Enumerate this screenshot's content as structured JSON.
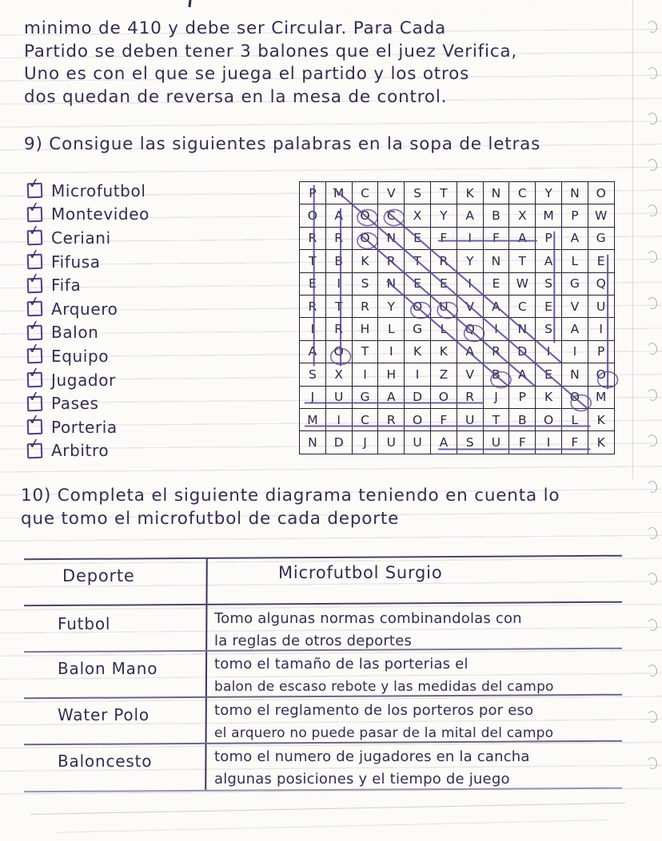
{
  "intro_lines": [
    "minimo de 410 y debe ser Circular. Para Cada",
    "Partido se deben tener 3 balones que el juez Verifica,",
    "Uno es con el que se juega el partido y los otros",
    "dos quedan de reversa en la mesa de control."
  ],
  "q9_text": "9) Consigue las siguientes palabras en la sopa de letras",
  "q10_lines": [
    "10) Completa el siguiente diagrama teniendo en cuenta lo",
    "que tomo el microfutbol de cada deporte"
  ],
  "word_list": [
    "Microfutbol",
    "Montevideo",
    "Ceriani",
    "Fifusa",
    "Fifa",
    "Arquero",
    "Balon",
    "Equipo",
    "Jugador",
    "Pases",
    "Porteria",
    "Arbitro"
  ],
  "word_search": {
    "rows": [
      "PMCVSTKNCYNO",
      "OAOCXYABXMPW",
      "RRONEFIFAPAG",
      "TBKRTRYNTALE",
      "EISNEEIEWSGQ",
      "RTRYOUVACEVU",
      "IRHLGLQINSAI",
      "AOTIKKARDIIP",
      "SXIHIZVBAENO",
      "JUGADORJPKOM",
      "MICROFUTBOLK",
      "NDJUUASUFIFK"
    ],
    "strikes": [
      {
        "word": "PORTERIA",
        "from": [
          1,
          1
        ],
        "to": [
          8,
          1
        ]
      },
      {
        "word": "ARBITRO",
        "from": [
          2,
          2
        ],
        "to": [
          8,
          2
        ]
      },
      {
        "word": "PASES",
        "from": [
          3,
          10
        ],
        "to": [
          7,
          10
        ]
      },
      {
        "word": "EQUIPO",
        "from": [
          4,
          12
        ],
        "to": [
          9,
          12
        ]
      },
      {
        "word": "FIFA",
        "from": [
          3,
          6
        ],
        "to": [
          3,
          9
        ]
      },
      {
        "word": "JUGADOR",
        "from": [
          10,
          1
        ],
        "to": [
          10,
          7
        ]
      },
      {
        "word": "MICROFUTBOL",
        "from": [
          11,
          1
        ],
        "to": [
          11,
          11
        ]
      },
      {
        "word": "FIFUSA",
        "from": [
          12,
          6
        ],
        "to": [
          12,
          11
        ]
      },
      {
        "word": "MONTEVIDEO",
        "from": [
          1,
          2
        ],
        "to": [
          10,
          11
        ]
      },
      {
        "word": "CERIANI",
        "from": [
          2,
          4
        ],
        "to": [
          8,
          10
        ]
      },
      {
        "word": "ARQUERO",
        "from": [
          3,
          3
        ],
        "to": [
          9,
          9
        ]
      },
      {
        "word": "BALON",
        "from": [
          5,
          4
        ],
        "to": [
          9,
          8
        ]
      }
    ],
    "circles": [
      [
        2,
        3
      ],
      [
        2,
        4
      ],
      [
        3,
        3
      ],
      [
        6,
        5
      ],
      [
        6,
        6
      ],
      [
        7,
        7
      ],
      [
        8,
        2
      ],
      [
        9,
        8
      ],
      [
        9,
        12
      ],
      [
        10,
        11
      ]
    ]
  },
  "table": {
    "header_deporte": "Deporte",
    "header_surgio": "Microfutbol Surgio",
    "rows": [
      {
        "deporte": "Futbol",
        "line1": "Tomo algunas normas combinandolas con",
        "line2": "la reglas de otros deportes"
      },
      {
        "deporte": "Balon Mano",
        "line1": "tomo el tamaño de las porterias el",
        "line2": "balon de escaso rebote y las medidas del campo"
      },
      {
        "deporte": "Water Polo",
        "line1": "tomo el reglamento de los porteros por eso",
        "line2": "el arquero no puede pasar de la mital del campo"
      },
      {
        "deporte": "Baloncesto",
        "line1": "tomo el numero de jugadores en la cancha",
        "line2": "algunas posiciones y el tiempo de juego"
      }
    ]
  },
  "icons": {
    "check": "✓"
  },
  "colors": {
    "ink": "#352d50",
    "purple_pen": "#4b3e8e",
    "strike": "#554798",
    "grid_border": "#24203a",
    "rule_line": "#dcdde6"
  }
}
